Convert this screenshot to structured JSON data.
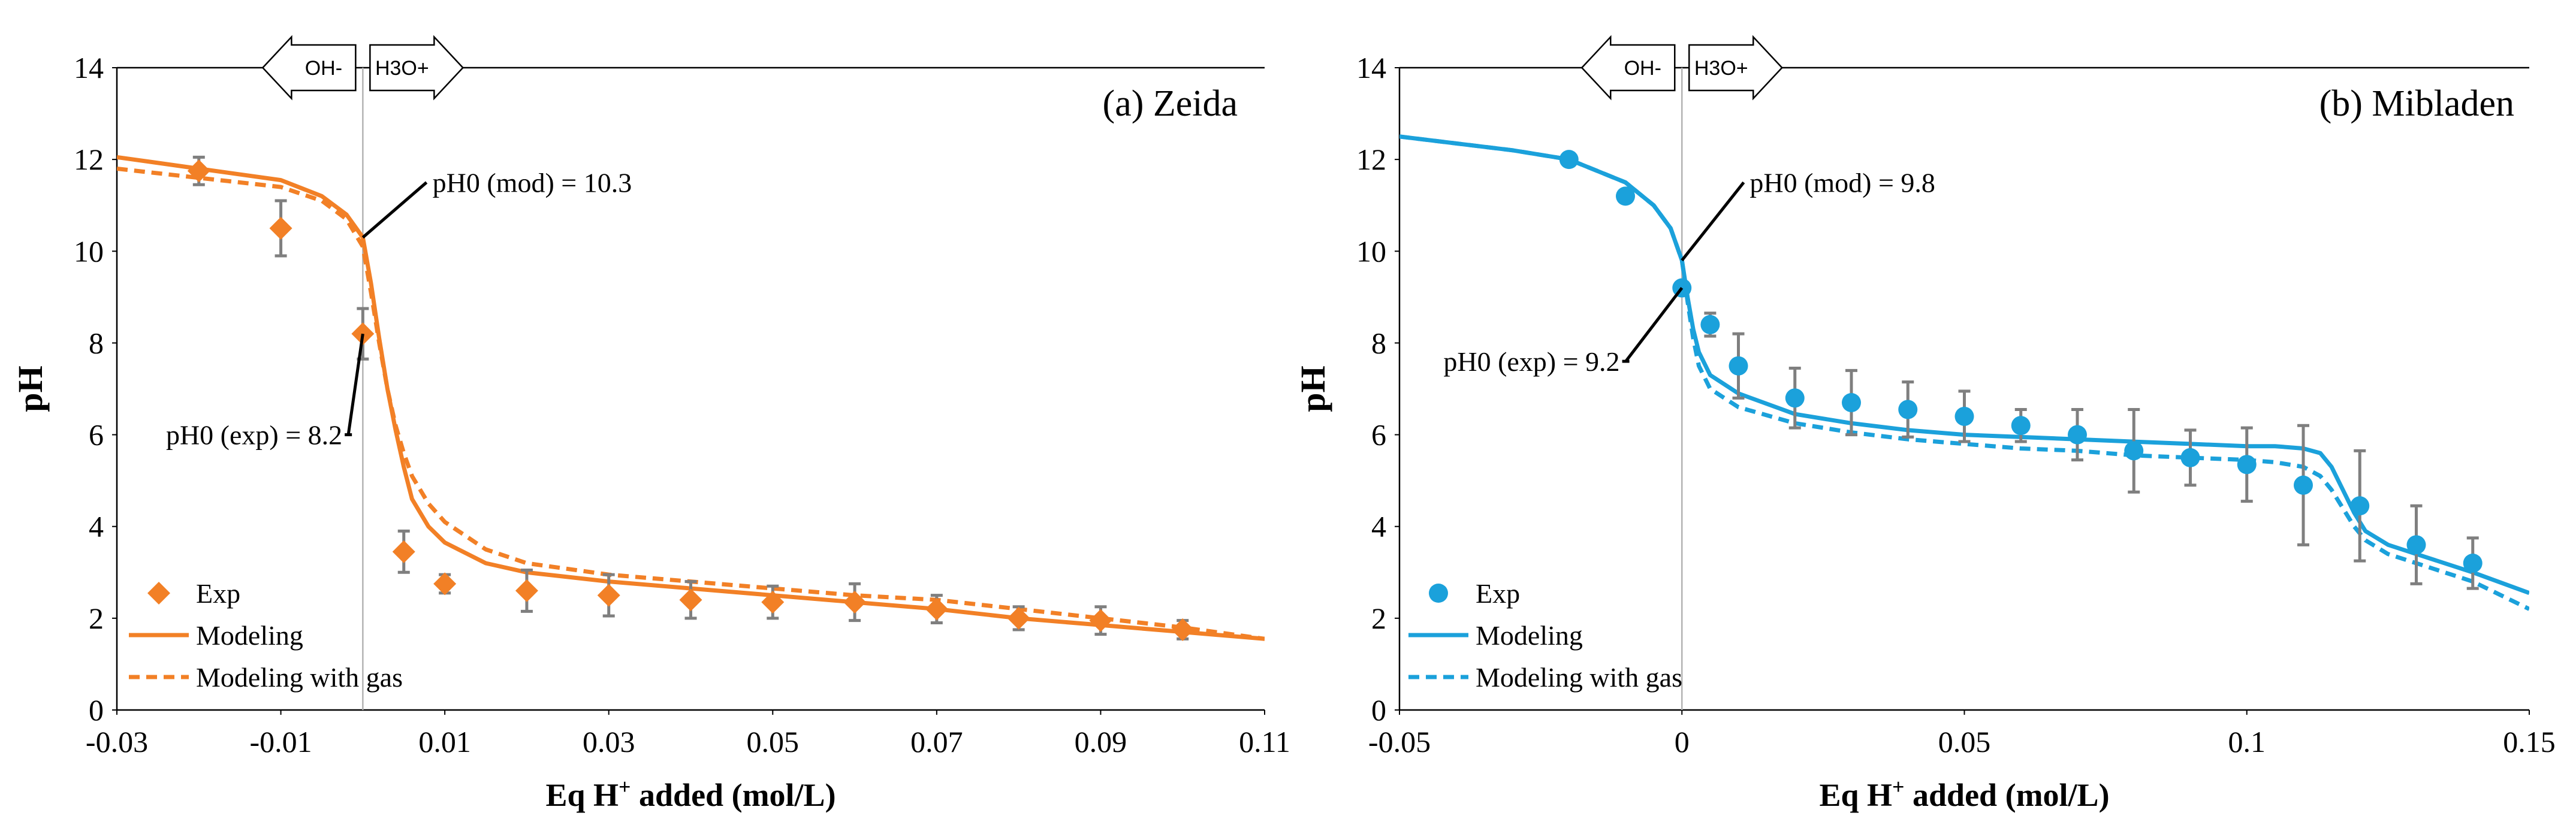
{
  "chart_data": [
    {
      "type": "scatter",
      "title": "(a) Zeida",
      "xlabel_main": "Eq H",
      "xlabel_sup": "+",
      "xlabel_rest": " added (mol/L)",
      "ylabel": "pH",
      "xlim": [
        -0.03,
        0.11
      ],
      "ylim": [
        0,
        14
      ],
      "x_ticks": [
        -0.03,
        -0.01,
        0.01,
        0.03,
        0.05,
        0.07,
        0.09,
        0.11
      ],
      "x_tick_labels": [
        "-0.03",
        "-0.01",
        "0.01",
        "0.03",
        "0.05",
        "0.07",
        "0.09",
        "0.11"
      ],
      "y_ticks": [
        0,
        2,
        4,
        6,
        8,
        10,
        12,
        14
      ],
      "y_tick_labels": [
        "0",
        "2",
        "4",
        "6",
        "8",
        "10",
        "12",
        "14"
      ],
      "color": "#F28026",
      "marker": "diamond",
      "arrows": {
        "left": "OH-",
        "right": "H3O+",
        "x": 0
      },
      "annotations": [
        {
          "text": "pH0 (mod) = 10.3",
          "x": 0,
          "y": 10.3,
          "text_x": 0.0085,
          "text_y": 11.5,
          "anchor": "start"
        },
        {
          "text": "pH0 (exp) = 8.2",
          "x": 0,
          "y": 8.2,
          "text_x": -0.0025,
          "text_y": 6.0,
          "anchor": "end"
        }
      ],
      "series": [
        {
          "name": "Exp",
          "kind": "points",
          "x": [
            -0.02,
            -0.01,
            0.0,
            0.005,
            0.01,
            0.02,
            0.03,
            0.04,
            0.05,
            0.06,
            0.07,
            0.08,
            0.09,
            0.1
          ],
          "y": [
            11.75,
            10.5,
            8.2,
            3.45,
            2.75,
            2.6,
            2.5,
            2.4,
            2.35,
            2.35,
            2.2,
            2.0,
            1.95,
            1.75
          ],
          "err": [
            0.3,
            0.6,
            0.55,
            0.45,
            0.2,
            0.45,
            0.45,
            0.4,
            0.35,
            0.4,
            0.3,
            0.25,
            0.3,
            0.2
          ]
        },
        {
          "name": "Modeling",
          "kind": "line",
          "x": [
            -0.03,
            -0.02,
            -0.01,
            -0.005,
            -0.002,
            0.0,
            0.001,
            0.002,
            0.003,
            0.004,
            0.005,
            0.006,
            0.008,
            0.01,
            0.015,
            0.02,
            0.03,
            0.04,
            0.05,
            0.06,
            0.07,
            0.08,
            0.09,
            0.1,
            0.11
          ],
          "y": [
            12.05,
            11.8,
            11.55,
            11.2,
            10.8,
            10.3,
            9.3,
            8.1,
            7.0,
            6.1,
            5.3,
            4.6,
            4.0,
            3.65,
            3.2,
            3.0,
            2.8,
            2.65,
            2.5,
            2.35,
            2.2,
            2.0,
            1.85,
            1.7,
            1.55
          ]
        },
        {
          "name": "Modeling with gas",
          "kind": "dashed",
          "x": [
            -0.03,
            -0.02,
            -0.01,
            -0.005,
            -0.002,
            0.0,
            0.001,
            0.002,
            0.003,
            0.004,
            0.005,
            0.006,
            0.008,
            0.01,
            0.015,
            0.02,
            0.03,
            0.04,
            0.05,
            0.06,
            0.07,
            0.08,
            0.09,
            0.1,
            0.11
          ],
          "y": [
            11.8,
            11.6,
            11.4,
            11.1,
            10.7,
            10.1,
            9.1,
            8.0,
            7.0,
            6.2,
            5.6,
            5.1,
            4.5,
            4.1,
            3.5,
            3.2,
            2.95,
            2.8,
            2.65,
            2.5,
            2.4,
            2.2,
            2.0,
            1.8,
            1.55
          ]
        }
      ],
      "legend": [
        "Exp",
        "Modeling",
        "Modeling with gas"
      ],
      "legend_position": "bottom-left"
    },
    {
      "type": "scatter",
      "title": "(b) Mibladen",
      "xlabel_main": "Eq H",
      "xlabel_sup": "+",
      "xlabel_rest": " added (mol/L)",
      "ylabel": "pH",
      "xlim": [
        -0.05,
        0.15
      ],
      "ylim": [
        0,
        14
      ],
      "x_ticks": [
        -0.05,
        0,
        0.05,
        0.1,
        0.15
      ],
      "x_tick_labels": [
        "-0.05",
        "0",
        "0.05",
        "0.1",
        "0.15"
      ],
      "y_ticks": [
        0,
        2,
        4,
        6,
        8,
        10,
        12,
        14
      ],
      "y_tick_labels": [
        "0",
        "2",
        "4",
        "6",
        "8",
        "10",
        "12",
        "14"
      ],
      "color": "#1BA1DB",
      "marker": "circle",
      "arrows": {
        "left": "OH-",
        "right": "H3O+",
        "x": 0
      },
      "annotations": [
        {
          "text": "pH0 (mod) = 9.8",
          "x": 0,
          "y": 9.8,
          "text_x": 0.012,
          "text_y": 11.5,
          "anchor": "start"
        },
        {
          "text": "pH0 (exp) = 9.2",
          "x": 0,
          "y": 9.2,
          "text_x": -0.011,
          "text_y": 7.6,
          "anchor": "end"
        }
      ],
      "series": [
        {
          "name": "Exp",
          "kind": "points",
          "x": [
            -0.02,
            -0.01,
            0.0,
            0.005,
            0.01,
            0.02,
            0.03,
            0.04,
            0.05,
            0.06,
            0.07,
            0.08,
            0.09,
            0.1,
            0.11,
            0.12,
            0.13,
            0.14
          ],
          "y": [
            12.0,
            11.2,
            9.2,
            8.4,
            7.5,
            6.8,
            6.7,
            6.55,
            6.4,
            6.2,
            6.0,
            5.65,
            5.5,
            5.35,
            4.9,
            4.45,
            3.6,
            3.2
          ],
          "err": [
            0,
            0,
            0,
            0.25,
            0.7,
            0.65,
            0.7,
            0.6,
            0.55,
            0.35,
            0.55,
            0.9,
            0.6,
            0.8,
            1.3,
            1.2,
            0.85,
            0.55
          ]
        },
        {
          "name": "Modeling",
          "kind": "line",
          "x": [
            -0.05,
            -0.03,
            -0.02,
            -0.01,
            -0.005,
            -0.002,
            0.0,
            0.001,
            0.002,
            0.003,
            0.005,
            0.01,
            0.02,
            0.03,
            0.04,
            0.05,
            0.06,
            0.07,
            0.08,
            0.09,
            0.1,
            0.105,
            0.11,
            0.113,
            0.115,
            0.117,
            0.119,
            0.121,
            0.125,
            0.13,
            0.14,
            0.15
          ],
          "y": [
            12.5,
            12.2,
            12.0,
            11.5,
            11.0,
            10.5,
            9.8,
            9.0,
            8.3,
            7.8,
            7.3,
            6.9,
            6.45,
            6.25,
            6.1,
            6.0,
            5.95,
            5.9,
            5.85,
            5.8,
            5.75,
            5.75,
            5.7,
            5.6,
            5.3,
            4.8,
            4.3,
            3.9,
            3.6,
            3.4,
            3.0,
            2.55
          ]
        },
        {
          "name": "Modeling with gas",
          "kind": "dashed",
          "x": [
            -0.05,
            -0.03,
            -0.02,
            -0.01,
            -0.005,
            -0.002,
            0.0,
            0.001,
            0.002,
            0.003,
            0.005,
            0.01,
            0.02,
            0.03,
            0.04,
            0.05,
            0.06,
            0.07,
            0.08,
            0.09,
            0.1,
            0.105,
            0.11,
            0.113,
            0.115,
            0.117,
            0.119,
            0.121,
            0.125,
            0.13,
            0.14,
            0.15
          ],
          "y": [
            12.5,
            12.2,
            12.0,
            11.5,
            11.0,
            10.5,
            9.8,
            8.9,
            8.1,
            7.5,
            7.0,
            6.6,
            6.25,
            6.05,
            5.9,
            5.8,
            5.7,
            5.65,
            5.55,
            5.5,
            5.45,
            5.4,
            5.3,
            5.1,
            4.8,
            4.4,
            4.0,
            3.7,
            3.4,
            3.2,
            2.8,
            2.2
          ]
        }
      ],
      "legend": [
        "Exp",
        "Modeling",
        "Modeling with gas"
      ],
      "legend_position": "bottom-left"
    }
  ]
}
